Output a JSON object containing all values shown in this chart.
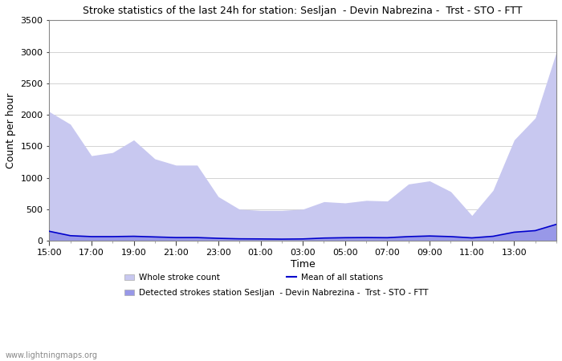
{
  "title": "Stroke statistics of the last 24h for station: Sesljan  - Devin Nabrezina -  Trst - STO - FTT",
  "xlabel": "Time",
  "ylabel": "Count per hour",
  "ylim": [
    0,
    3500
  ],
  "yticks": [
    0,
    500,
    1000,
    1500,
    2000,
    2500,
    3000,
    3500
  ],
  "xtick_labels": [
    "15:00",
    "17:00",
    "19:00",
    "21:00",
    "23:00",
    "01:00",
    "03:00",
    "05:00",
    "07:00",
    "09:00",
    "11:00",
    "13:00"
  ],
  "watermark": "www.lightningmaps.org",
  "whole_stroke_color": "#c8c8f0",
  "detected_stroke_color": "#9898e8",
  "mean_line_color": "#0000cc",
  "background_color": "#ffffff",
  "x": [
    0,
    1,
    2,
    3,
    4,
    5,
    6,
    7,
    8,
    9,
    10,
    11,
    12,
    13,
    14,
    15,
    16,
    17,
    18,
    19,
    20,
    21,
    22,
    23,
    24
  ],
  "whole_stroke": [
    2050,
    1850,
    1350,
    1400,
    1600,
    1300,
    1200,
    1200,
    700,
    500,
    480,
    480,
    500,
    620,
    600,
    640,
    630,
    900,
    950,
    780,
    400,
    800,
    1600,
    1950,
    3000
  ],
  "detected_stroke": [
    150,
    80,
    65,
    65,
    70,
    60,
    50,
    50,
    38,
    30,
    28,
    25,
    28,
    42,
    48,
    50,
    48,
    65,
    75,
    65,
    45,
    70,
    135,
    160,
    260
  ],
  "mean_line": [
    150,
    80,
    65,
    65,
    70,
    60,
    50,
    50,
    38,
    30,
    28,
    25,
    28,
    42,
    48,
    50,
    48,
    65,
    75,
    65,
    45,
    70,
    135,
    160,
    260
  ]
}
